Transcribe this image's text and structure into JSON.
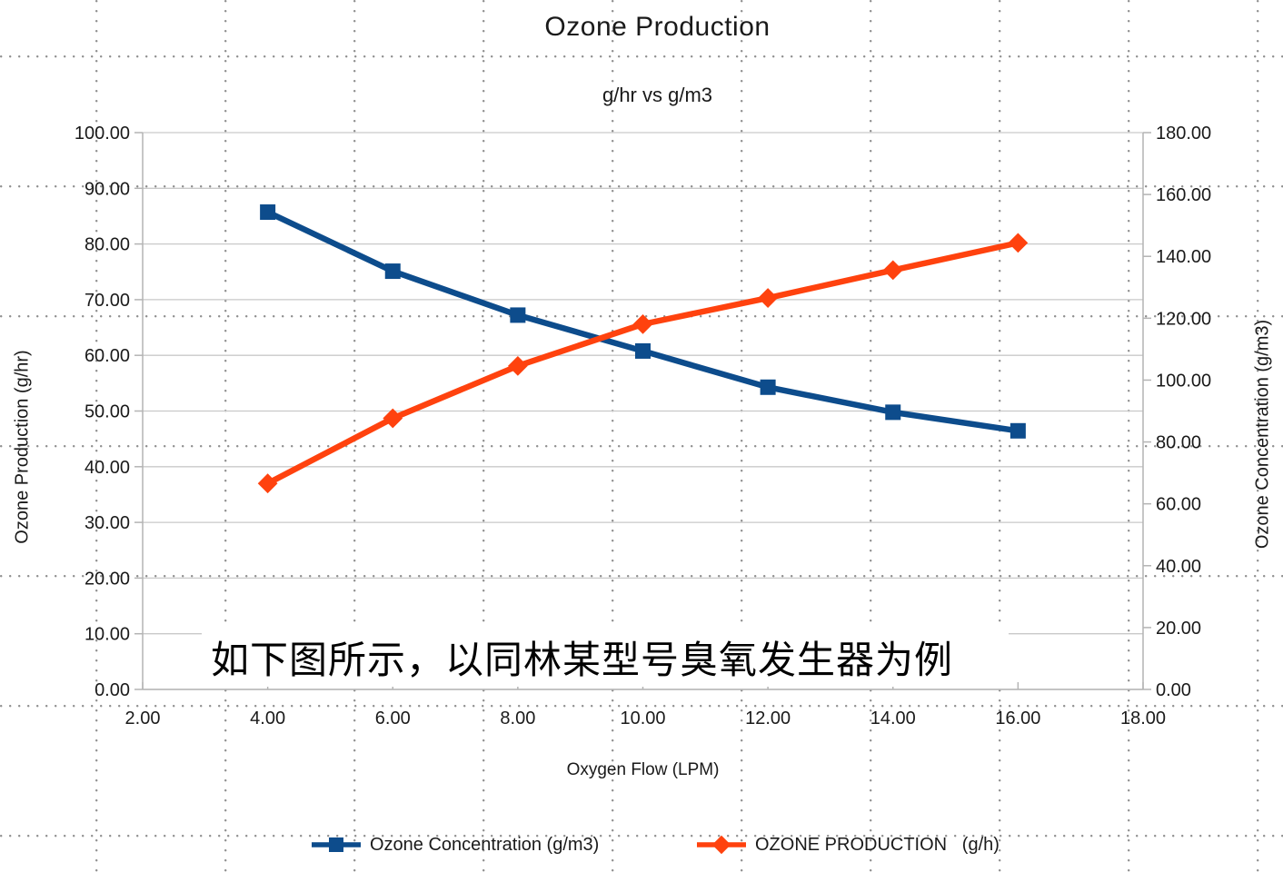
{
  "chart_data": {
    "type": "line",
    "title": "Ozone Production",
    "subtitle": "g/hr vs g/m3",
    "xlabel": "Oxygen Flow (LPM)",
    "ylabel_left": "Ozone Production (g/hr)",
    "ylabel_right": "Ozone Concentration (g/m3)",
    "x": [
      4,
      6,
      8,
      10,
      12,
      14,
      16
    ],
    "series": [
      {
        "name": "Ozone Concentration (g/m3)",
        "axis": "right",
        "marker": "square",
        "color": "#0d4c8c",
        "values": [
          154.3,
          135.2,
          121.0,
          109.4,
          97.7,
          89.6,
          83.6
        ]
      },
      {
        "name": "OZONE PRODUCTION   (g/h)",
        "axis": "left",
        "marker": "diamond",
        "color": "#ff420e",
        "values": [
          37.0,
          48.7,
          58.1,
          65.6,
          70.3,
          75.3,
          80.2
        ]
      }
    ],
    "x_axis": {
      "min": 2,
      "max": 18,
      "step": 2,
      "decimals": 2
    },
    "y_axis_left": {
      "min": 0,
      "max": 100,
      "step": 10,
      "decimals": 2
    },
    "y_axis_right": {
      "min": 0,
      "max": 180,
      "step": 20,
      "decimals": 2
    },
    "grid": "horizontal",
    "legend_position": "bottom"
  },
  "annotation": {
    "text": "如下图所示，以同林某型号臭氧发生器为例"
  },
  "colors": {
    "grid_line": "#c9c9c9",
    "axis_line": "#b4b4b4",
    "tick_text": "#1a1a1a",
    "background_dots": "#8f8f8f"
  }
}
